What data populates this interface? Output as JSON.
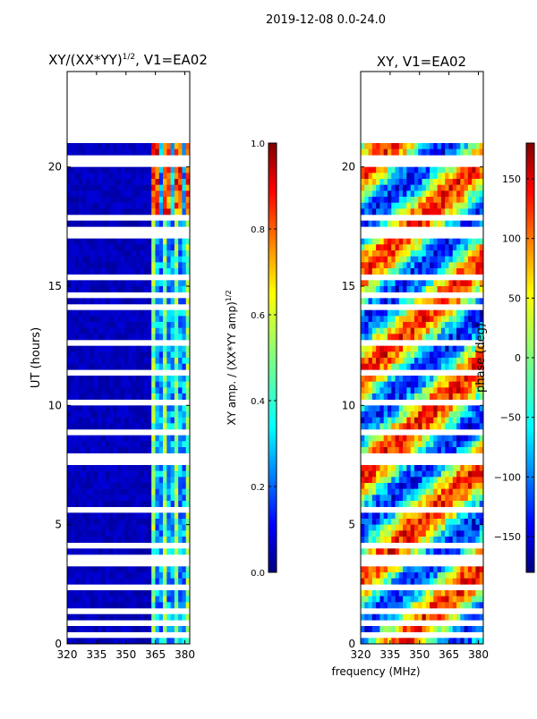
{
  "page": {
    "title": "2019-12-08 0.0-24.0"
  },
  "shared": {
    "xlabel": "frequency (MHz)"
  },
  "chart_data": [
    {
      "type": "heatmap",
      "id": "left",
      "title_prefix": "XY/(XX*YY)",
      "title_sup": "1/2",
      "title_suffix": ", V1=EA02",
      "ylabel": "UT (hours)",
      "xlim": [
        320,
        382.5
      ],
      "ylim": [
        0,
        24
      ],
      "xticks": [
        320,
        335,
        350,
        365,
        380
      ],
      "yticks": [
        0,
        5,
        10,
        15,
        20
      ],
      "data_extent_ut": [
        0,
        21
      ],
      "colorbar": {
        "label_prefix": "XY amp. / (XX*YY amp)",
        "label_sup": "1/2",
        "range": [
          0.0,
          1.0
        ],
        "ticks": [
          "0.0",
          "0.2",
          "0.4",
          "0.6",
          "0.8",
          "1.0"
        ],
        "colormap": "jet"
      }
    },
    {
      "type": "heatmap",
      "id": "right",
      "title": "XY, V1=EA02",
      "ylabel": "phase (deg)",
      "xlim": [
        320,
        382.5
      ],
      "ylim": [
        0,
        24
      ],
      "xticks": [
        320,
        335,
        350,
        365,
        380
      ],
      "yticks": [
        0,
        5,
        10,
        15,
        20
      ],
      "data_extent_ut": [
        0,
        21
      ],
      "colorbar": {
        "range": [
          -180,
          180
        ],
        "ticks": [
          "−150",
          "−100",
          "−50",
          "0",
          "50",
          "100",
          "150"
        ],
        "colormap": "jet"
      }
    }
  ],
  "colors": {
    "jet": [
      "#00007f",
      "#0000ff",
      "#007fff",
      "#00ffff",
      "#7fff7f",
      "#ffff00",
      "#ff7f00",
      "#ff0000",
      "#7f0000"
    ]
  }
}
